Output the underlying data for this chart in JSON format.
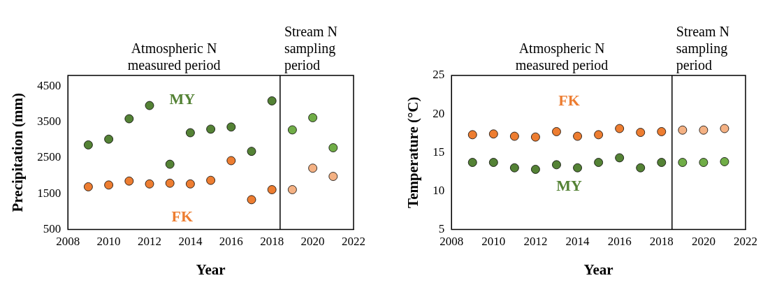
{
  "chart_data": [
    {
      "type": "scatter",
      "xlabel": "Year",
      "ylabel": "Precipitation (mm)",
      "marker": "circle",
      "grid": false,
      "xlim": [
        2008,
        2022
      ],
      "xticks": [
        2008,
        2010,
        2012,
        2014,
        2016,
        2018,
        2020,
        2022
      ],
      "ylim": [
        500,
        4800
      ],
      "yticks": [
        500,
        1500,
        2500,
        3500,
        4500
      ],
      "x": [
        2009,
        2010,
        2011,
        2012,
        2013,
        2014,
        2015,
        2016,
        2017,
        2018,
        2019,
        2020,
        2021
      ],
      "series": [
        {
          "name": "MY",
          "colors": [
            "#548235",
            "#548235",
            "#548235",
            "#548235",
            "#548235",
            "#548235",
            "#548235",
            "#548235",
            "#548235",
            "#548235",
            "#70ad47",
            "#70ad47",
            "#70ad47"
          ],
          "values": [
            2860,
            3020,
            3590,
            3960,
            2320,
            3200,
            3300,
            3360,
            2680,
            4090,
            3280,
            3620,
            2780
          ]
        },
        {
          "name": "FK",
          "colors": [
            "#ed7d31",
            "#ed7d31",
            "#ed7d31",
            "#ed7d31",
            "#ed7d31",
            "#ed7d31",
            "#ed7d31",
            "#ed7d31",
            "#ed7d31",
            "#ed7d31",
            "#f4b183",
            "#f4b183",
            "#f4b183"
          ],
          "values": [
            1690,
            1740,
            1850,
            1770,
            1790,
            1770,
            1870,
            2420,
            1330,
            1610,
            1610,
            2210,
            1980
          ]
        }
      ],
      "ref_lines": [
        {
          "axis": "x",
          "value": 2018.4,
          "color": "#000000"
        }
      ],
      "annotations": [
        "Atmospheric N measured period",
        "Stream N sampling period"
      ]
    },
    {
      "type": "scatter",
      "xlabel": "Year",
      "ylabel": "Temperature (°C)",
      "marker": "circle",
      "grid": false,
      "xlim": [
        2008,
        2022
      ],
      "xticks": [
        2008,
        2010,
        2012,
        2014,
        2016,
        2018,
        2020,
        2022
      ],
      "ylim": [
        5,
        25
      ],
      "yticks": [
        5,
        10,
        15,
        20,
        25
      ],
      "x": [
        2009,
        2010,
        2011,
        2012,
        2013,
        2014,
        2015,
        2016,
        2017,
        2018,
        2019,
        2020,
        2021
      ],
      "series": [
        {
          "name": "FK",
          "colors": [
            "#ed7d31",
            "#ed7d31",
            "#ed7d31",
            "#ed7d31",
            "#ed7d31",
            "#ed7d31",
            "#ed7d31",
            "#ed7d31",
            "#ed7d31",
            "#ed7d31",
            "#f4b183",
            "#f4b183",
            "#f4b183"
          ],
          "values": [
            17.3,
            17.4,
            17.1,
            17.0,
            17.7,
            17.1,
            17.3,
            18.1,
            17.6,
            17.7,
            17.9,
            17.9,
            18.1
          ]
        },
        {
          "name": "MY",
          "colors": [
            "#548235",
            "#548235",
            "#548235",
            "#548235",
            "#548235",
            "#548235",
            "#548235",
            "#548235",
            "#548235",
            "#548235",
            "#70ad47",
            "#70ad47",
            "#70ad47"
          ],
          "values": [
            13.7,
            13.7,
            13.0,
            12.8,
            13.4,
            13.0,
            13.7,
            14.3,
            13.0,
            13.7,
            13.7,
            13.7,
            13.8
          ]
        }
      ],
      "ref_lines": [
        {
          "axis": "x",
          "value": 2018.5,
          "color": "#000000"
        }
      ],
      "annotations": [
        "Atmospheric N measured period",
        "Stream N sampling period"
      ]
    }
  ]
}
